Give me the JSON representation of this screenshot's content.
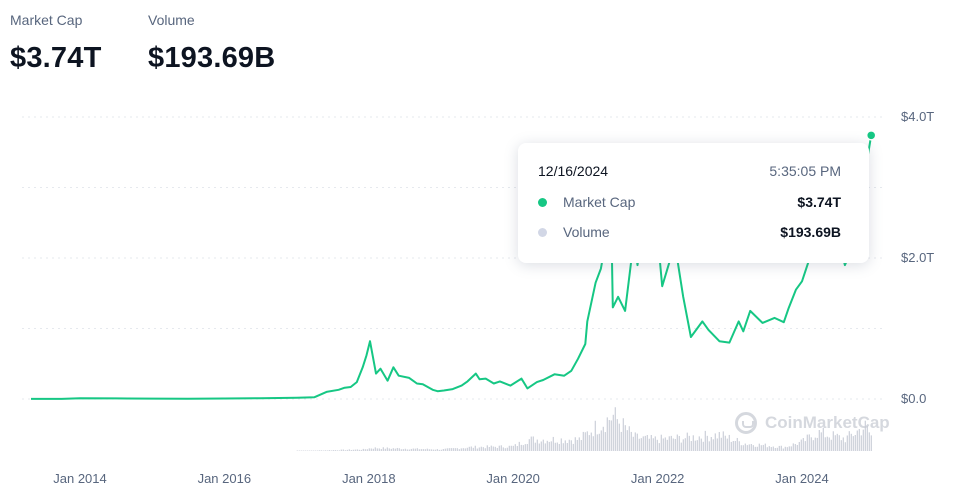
{
  "stats": {
    "market_cap_label": "Market Cap",
    "market_cap_value": "$3.74T",
    "volume_label": "Volume",
    "volume_value": "$193.69B"
  },
  "tooltip": {
    "date": "12/16/2024",
    "time": "5:35:05 PM",
    "rows": [
      {
        "label": "Market Cap",
        "value": "$3.74T",
        "color": "#16c784"
      },
      {
        "label": "Volume",
        "value": "$193.69B",
        "color": "#d2d7e6"
      }
    ]
  },
  "watermark": "CoinMarketCap",
  "colors": {
    "line": "#16c784",
    "volume": "#cfd3dc",
    "grid": "#e6e9ee",
    "text_secondary": "#58667e"
  },
  "chart_data": {
    "type": "line",
    "title": "",
    "xlabel": "",
    "ylabel": "",
    "x_tick_labels": [
      "Jan 2014",
      "Jan 2016",
      "Jan 2018",
      "Jan 2020",
      "Jan 2022",
      "Jan 2024"
    ],
    "y_tick_labels": [
      "$0.0",
      "$2.0T",
      "$4.0T"
    ],
    "ylim": [
      0,
      4.0
    ],
    "y_unit": "trillion USD",
    "grid": true,
    "series": [
      {
        "name": "Market Cap",
        "x": [
          "2013-04-28",
          "2013-10-01",
          "2014-01-01",
          "2014-07-01",
          "2015-01-01",
          "2015-07-01",
          "2016-01-01",
          "2016-07-01",
          "2017-01-01",
          "2017-04-01",
          "2017-06-01",
          "2017-08-01",
          "2017-09-01",
          "2017-10-01",
          "2017-11-01",
          "2017-12-01",
          "2017-12-20",
          "2018-01-07",
          "2018-02-06",
          "2018-03-01",
          "2018-04-06",
          "2018-05-05",
          "2018-06-01",
          "2018-07-24",
          "2018-09-01",
          "2018-10-01",
          "2018-11-20",
          "2018-12-15",
          "2019-01-15",
          "2019-03-01",
          "2019-04-15",
          "2019-05-15",
          "2019-06-26",
          "2019-07-15",
          "2019-08-15",
          "2019-09-25",
          "2019-10-26",
          "2019-12-18",
          "2020-02-12",
          "2020-03-13",
          "2020-04-30",
          "2020-06-01",
          "2020-07-28",
          "2020-09-15",
          "2020-10-21",
          "2020-11-24",
          "2020-12-31",
          "2021-01-10",
          "2021-02-21",
          "2021-03-20",
          "2021-04-14",
          "2021-05-12",
          "2021-05-19",
          "2021-06-15",
          "2021-07-20",
          "2021-08-22",
          "2021-09-07",
          "2021-09-21",
          "2021-11-10",
          "2021-12-04",
          "2022-01-01",
          "2022-01-24",
          "2022-03-29",
          "2022-05-10",
          "2022-06-18",
          "2022-08-15",
          "2022-09-15",
          "2022-11-09",
          "2022-12-30",
          "2023-02-15",
          "2023-03-10",
          "2023-04-14",
          "2023-06-15",
          "2023-08-15",
          "2023-10-01",
          "2023-10-24",
          "2023-12-01",
          "2024-01-01",
          "2024-02-15",
          "2024-03-14",
          "2024-05-01",
          "2024-06-05",
          "2024-08-05",
          "2024-10-01",
          "2024-11-06",
          "2024-11-12",
          "2024-12-05",
          "2024-12-16"
        ],
        "values": [
          0.0015,
          0.002,
          0.011,
          0.008,
          0.005,
          0.004,
          0.007,
          0.011,
          0.018,
          0.026,
          0.1,
          0.13,
          0.16,
          0.17,
          0.24,
          0.45,
          0.62,
          0.82,
          0.36,
          0.43,
          0.26,
          0.45,
          0.33,
          0.3,
          0.22,
          0.21,
          0.13,
          0.11,
          0.12,
          0.14,
          0.19,
          0.25,
          0.36,
          0.28,
          0.29,
          0.22,
          0.25,
          0.19,
          0.29,
          0.15,
          0.24,
          0.27,
          0.35,
          0.33,
          0.4,
          0.57,
          0.78,
          1.1,
          1.65,
          1.85,
          2.25,
          2.45,
          1.3,
          1.45,
          1.25,
          2.0,
          2.2,
          1.9,
          2.95,
          2.35,
          2.3,
          1.6,
          2.2,
          1.45,
          0.88,
          1.1,
          0.98,
          0.82,
          0.8,
          1.1,
          0.96,
          1.25,
          1.08,
          1.15,
          1.09,
          1.28,
          1.55,
          1.67,
          2.05,
          2.75,
          2.25,
          2.6,
          1.9,
          2.25,
          2.6,
          3.2,
          3.55,
          3.74
        ]
      },
      {
        "name": "Volume",
        "x": [
          "2017-01-01",
          "2017-12-01",
          "2018-01-15",
          "2019-01-01",
          "2019-06-01",
          "2020-01-01",
          "2020-03-13",
          "2020-12-01",
          "2021-01-15",
          "2021-05-19",
          "2021-09-01",
          "2021-12-01",
          "2022-05-10",
          "2022-11-09",
          "2023-03-10",
          "2023-10-01",
          "2024-01-01",
          "2024-03-14",
          "2024-08-05",
          "2024-11-12",
          "2024-12-16"
        ],
        "values": [
          0.001,
          0.02,
          0.04,
          0.02,
          0.05,
          0.06,
          0.15,
          0.15,
          0.25,
          0.46,
          0.18,
          0.15,
          0.17,
          0.21,
          0.1,
          0.05,
          0.12,
          0.24,
          0.16,
          0.32,
          0.19
        ]
      }
    ]
  }
}
